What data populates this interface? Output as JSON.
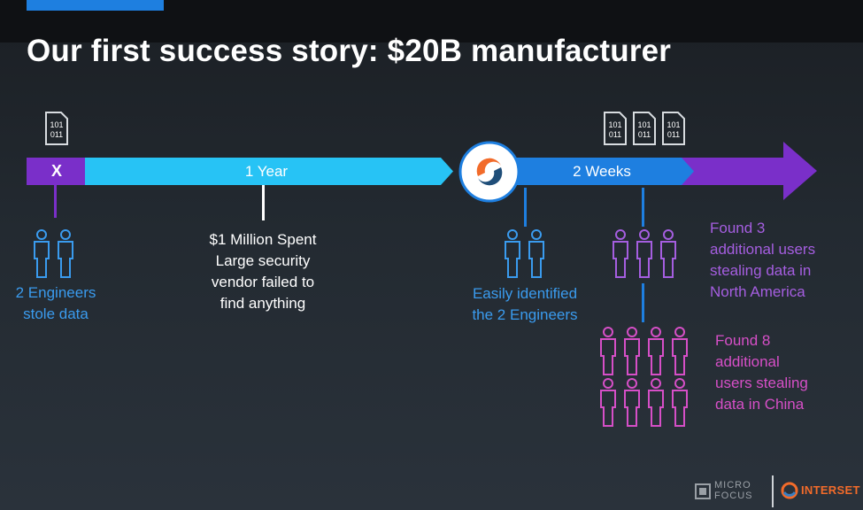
{
  "title": "Our first success story: $20B manufacturer",
  "colors": {
    "timeline_purple": "#7a2fc9",
    "timeline_cyan": "#27c3f5",
    "timeline_blue": "#1e7fe0",
    "text_blue": "#3a9bee",
    "text_purple": "#a55ee0",
    "text_magenta": "#d64fc7"
  },
  "timeline": {
    "start_marker": "X",
    "segment1_label": "1 Year",
    "segment2_label": "2 Weeks"
  },
  "icons": {
    "binary_file_text_top": "101",
    "binary_file_text_bottom": "011"
  },
  "events": {
    "breach": {
      "lines": [
        "2 Engineers",
        "stole data"
      ]
    },
    "vendor": {
      "lines": [
        "$1 Million Spent",
        "Large security",
        "vendor failed to",
        "find anything"
      ]
    },
    "identified": {
      "lines": [
        "Easily identified",
        "the 2 Engineers"
      ]
    },
    "north_america": {
      "lines": [
        "Found 3",
        "additional users",
        "stealing data in",
        "North America"
      ]
    },
    "china": {
      "lines": [
        "Found 8",
        "additional",
        "users stealing",
        "data in China"
      ]
    }
  },
  "footer": {
    "brand1_line1": "MICRO",
    "brand1_line2": "FOCUS",
    "brand2": "INTERSET"
  }
}
